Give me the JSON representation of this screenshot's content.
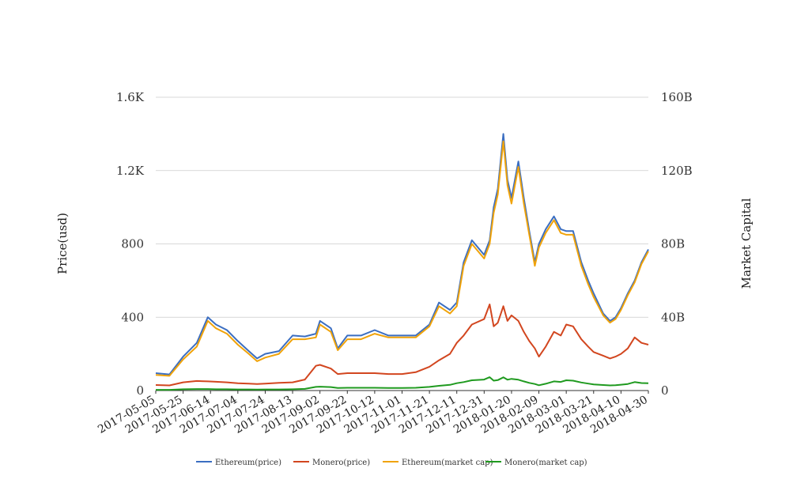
{
  "chart_data": {
    "type": "line",
    "x_type": "date",
    "x_ticks": [
      "2017-05-05",
      "2017-05-25",
      "2017-06-14",
      "2017-07-04",
      "2017-07-24",
      "2017-08-13",
      "2017-09-02",
      "2017-09-22",
      "2017-10-12",
      "2017-11-01",
      "2017-11-21",
      "2017-12-11",
      "2017-12-31",
      "2018-01-20",
      "2018-02-09",
      "2018-03-01",
      "2018-03-21",
      "2018-04-10",
      "2018-04-30"
    ],
    "y_left": {
      "label": "Price(usd)",
      "ticks": [
        "0",
        "400",
        "800",
        "1.2K",
        "1.6K"
      ],
      "tick_values": [
        0,
        400,
        800,
        1200,
        1600
      ],
      "range": [
        0,
        1600
      ]
    },
    "y_right": {
      "label": "Market Capital",
      "ticks": [
        "0",
        "40B",
        "80B",
        "120B",
        "160B"
      ],
      "tick_values": [
        0,
        40,
        80,
        120,
        160
      ],
      "range": [
        0,
        160
      ],
      "unit": "B"
    },
    "grid": "horizontal",
    "legend_position": "bottom",
    "x": [
      "2017-05-05",
      "2017-05-15",
      "2017-05-25",
      "2017-06-04",
      "2017-06-12",
      "2017-06-18",
      "2017-06-26",
      "2017-07-04",
      "2017-07-12",
      "2017-07-18",
      "2017-07-24",
      "2017-08-03",
      "2017-08-13",
      "2017-08-22",
      "2017-08-30",
      "2017-09-02",
      "2017-09-10",
      "2017-09-15",
      "2017-09-22",
      "2017-10-02",
      "2017-10-12",
      "2017-10-22",
      "2017-11-01",
      "2017-11-11",
      "2017-11-21",
      "2017-11-28",
      "2017-12-06",
      "2017-12-11",
      "2017-12-16",
      "2017-12-22",
      "2017-12-31",
      "2018-01-04",
      "2018-01-07",
      "2018-01-10",
      "2018-01-14",
      "2018-01-17",
      "2018-01-20",
      "2018-01-25",
      "2018-01-29",
      "2018-02-02",
      "2018-02-06",
      "2018-02-09",
      "2018-02-14",
      "2018-02-20",
      "2018-02-25",
      "2018-03-01",
      "2018-03-06",
      "2018-03-12",
      "2018-03-17",
      "2018-03-21",
      "2018-03-28",
      "2018-04-02",
      "2018-04-06",
      "2018-04-10",
      "2018-04-15",
      "2018-04-20",
      "2018-04-25",
      "2018-04-30"
    ],
    "series": [
      {
        "name": "Ethereum(price)",
        "axis": "left",
        "color": "#3b6ec1",
        "values": [
          95,
          88,
          185,
          260,
          400,
          360,
          330,
          270,
          215,
          175,
          200,
          215,
          300,
          295,
          310,
          380,
          340,
          230,
          300,
          300,
          330,
          300,
          300,
          300,
          360,
          480,
          440,
          480,
          700,
          820,
          740,
          820,
          1000,
          1100,
          1400,
          1150,
          1050,
          1250,
          1050,
          870,
          700,
          800,
          880,
          950,
          880,
          870,
          870,
          700,
          600,
          530,
          420,
          380,
          400,
          450,
          530,
          600,
          700,
          770
        ]
      },
      {
        "name": "Monero(price)",
        "axis": "left",
        "color": "#d2461f",
        "values": [
          30,
          28,
          45,
          52,
          50,
          48,
          45,
          40,
          38,
          36,
          38,
          42,
          45,
          60,
          135,
          140,
          120,
          90,
          95,
          95,
          95,
          90,
          90,
          100,
          130,
          165,
          200,
          260,
          300,
          360,
          390,
          470,
          350,
          370,
          460,
          380,
          410,
          380,
          320,
          270,
          230,
          185,
          240,
          320,
          300,
          360,
          350,
          280,
          240,
          210,
          190,
          175,
          185,
          200,
          230,
          290,
          260,
          250
        ]
      },
      {
        "name": "Ethereum(market cap)",
        "axis": "right",
        "color": "#f0a30a",
        "values": [
          8.5,
          8,
          17,
          24,
          38,
          34,
          31,
          25,
          20,
          16,
          18,
          20,
          28,
          28,
          29,
          36,
          32,
          22,
          28,
          28,
          31,
          29,
          29,
          29,
          35,
          46,
          42,
          46,
          68,
          80,
          72,
          80,
          97,
          107,
          136,
          112,
          102,
          122,
          102,
          85,
          68,
          78,
          86,
          93,
          86,
          85,
          85,
          68,
          58,
          51,
          41,
          37,
          39,
          44,
          52,
          59,
          69,
          76
        ]
      },
      {
        "name": "Monero(market cap)",
        "axis": "right",
        "color": "#1f9a1f",
        "values": [
          0.4,
          0.4,
          0.7,
          0.8,
          0.8,
          0.7,
          0.7,
          0.6,
          0.6,
          0.5,
          0.6,
          0.6,
          0.7,
          0.9,
          2.0,
          2.1,
          1.9,
          1.4,
          1.5,
          1.5,
          1.5,
          1.4,
          1.4,
          1.5,
          2.0,
          2.6,
          3.1,
          4.0,
          4.6,
          5.6,
          6.0,
          7.3,
          5.4,
          5.7,
          7.2,
          5.9,
          6.4,
          5.9,
          5.0,
          4.2,
          3.6,
          2.9,
          3.7,
          5.0,
          4.7,
          5.6,
          5.4,
          4.4,
          3.8,
          3.3,
          3.0,
          2.8,
          2.9,
          3.2,
          3.6,
          4.6,
          4.1,
          4.0
        ]
      }
    ]
  }
}
